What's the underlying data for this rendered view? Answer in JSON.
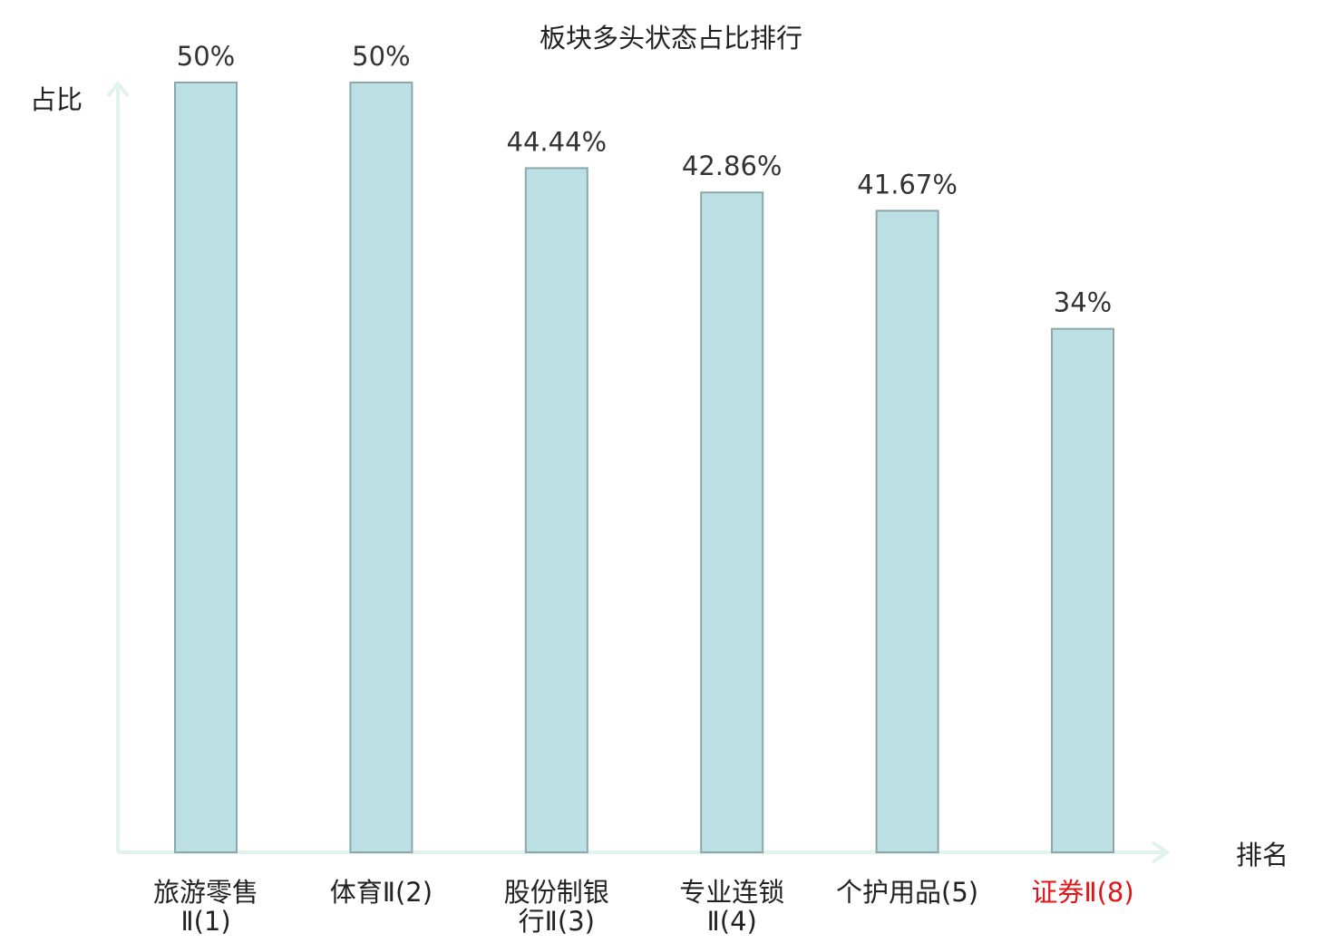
{
  "chart_data": {
    "type": "bar",
    "title": "板块多头状态占比排行",
    "ylabel": "占比",
    "xlabel": "排名",
    "categories": [
      {
        "lines": [
          "旅游零售",
          "Ⅱ(1)"
        ],
        "highlight": false
      },
      {
        "lines": [
          "体育Ⅱ(2)"
        ],
        "highlight": false
      },
      {
        "lines": [
          "股份制银",
          "行Ⅱ(3)"
        ],
        "highlight": false
      },
      {
        "lines": [
          "专业连锁",
          "Ⅱ(4)"
        ],
        "highlight": false
      },
      {
        "lines": [
          "个护用品(5)"
        ],
        "highlight": false
      },
      {
        "lines": [
          "证券Ⅱ(8)"
        ],
        "highlight": true
      }
    ],
    "values": [
      50,
      50,
      44.44,
      42.86,
      41.67,
      34
    ],
    "value_labels": [
      "50%",
      "50%",
      "44.44%",
      "42.86%",
      "41.67%",
      "34%"
    ],
    "ylim": [
      0,
      50
    ],
    "grid": false,
    "legend": "none",
    "colors": {
      "bar_fill": "#bce0e3",
      "bar_stroke": "#8aa8aa",
      "axis": "#e0f3ef",
      "highlight_label": "#e0161b"
    }
  }
}
